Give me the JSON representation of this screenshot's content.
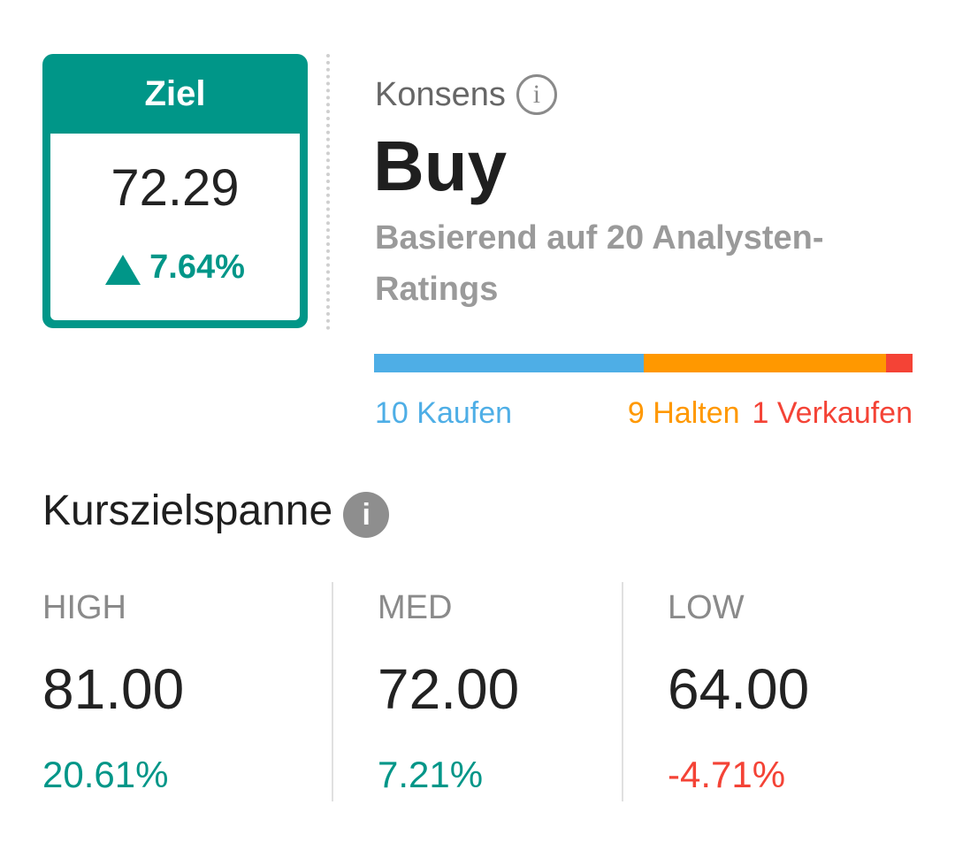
{
  "target": {
    "header": "Ziel",
    "value": "72.29",
    "change": "7.64%",
    "direction_icon": "triangle-up-icon"
  },
  "consensus": {
    "label": "Konsens",
    "info_icon": "info-outline-icon",
    "rating": "Buy",
    "subtitle": "Basierend auf 20 Analysten-Ratings",
    "distribution": {
      "buy": {
        "count": 10,
        "label": "10 Kaufen",
        "color": "#4eaee6"
      },
      "hold": {
        "count": 9,
        "label": "9 Halten",
        "color": "#ff9800"
      },
      "sell": {
        "count": 1,
        "label": "1 Verkaufen",
        "color": "#f44336"
      }
    }
  },
  "price_range": {
    "title": "Kurszielspanne",
    "info_icon": "info-filled-icon",
    "columns": [
      {
        "label": "HIGH",
        "value": "81.00",
        "pct": "20.61%",
        "trend": "positive"
      },
      {
        "label": "MED",
        "value": "72.00",
        "pct": "7.21%",
        "trend": "positive"
      },
      {
        "label": "LOW",
        "value": "64.00",
        "pct": "-4.71%",
        "trend": "negative"
      }
    ]
  },
  "colors": {
    "accent": "#009688",
    "negative": "#f44336"
  }
}
